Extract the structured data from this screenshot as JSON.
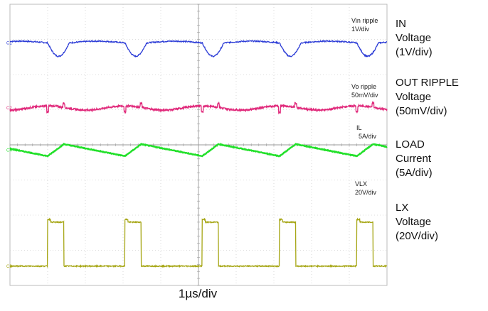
{
  "timebase_label": "1µs/div",
  "side_labels": {
    "in": {
      "line1": "IN",
      "line2": "Voltage",
      "line3": "(1V/div)"
    },
    "out": {
      "line1": "OUT RIPPLE",
      "line2": "Voltage",
      "line3": "(50mV/div)"
    },
    "load": {
      "line1": "LOAD",
      "line2": "Current",
      "line3": "(5A/div)"
    },
    "lx": {
      "line1": "LX",
      "line2": "Voltage",
      "line3": "(20V/div)"
    }
  },
  "chart_data": {
    "type": "line",
    "title": "",
    "xlabel": "1µs/div",
    "grid": true,
    "x_divisions": 10,
    "y_divisions": 8,
    "switching_period_div": 2.05,
    "series": [
      {
        "key": "vin",
        "name": "Vin ripple",
        "scale": "1V/div",
        "color": "#2b3bd6",
        "marker": "C1",
        "baseline_div": 6.9,
        "waveform": "periodic dip of about 0.35 div during switch on-time"
      },
      {
        "key": "vo",
        "name": "Vo ripple",
        "scale": "50mV/div",
        "color": "#e0287a",
        "marker": "C2",
        "baseline_div": 5.05,
        "waveform": "small ripple with switching spikes of about 0.15 div"
      },
      {
        "key": "il",
        "name": "IL",
        "scale": "5A/div",
        "color": "#22e02a",
        "marker": "C4",
        "baseline_div": 3.85,
        "waveform": "triangular inductor current, about 0.35 div peak-to-peak"
      },
      {
        "key": "vlx",
        "name": "VLX",
        "scale": "20V/div",
        "color": "#a6a615",
        "marker": "C3",
        "baseline_div": 0.55,
        "waveform": "square pulses of about 1.2 div, duty about 0.21"
      }
    ],
    "labels": [
      {
        "key": "vin",
        "line1": "Vin ripple",
        "line2": "1V/div"
      },
      {
        "key": "vo",
        "line1": "Vo ripple",
        "line2": "50mV/div"
      },
      {
        "key": "il",
        "line1": "IL",
        "line2": "5A/div"
      },
      {
        "key": "vlx",
        "line1": "VLX",
        "line2": "20V/div"
      }
    ]
  }
}
